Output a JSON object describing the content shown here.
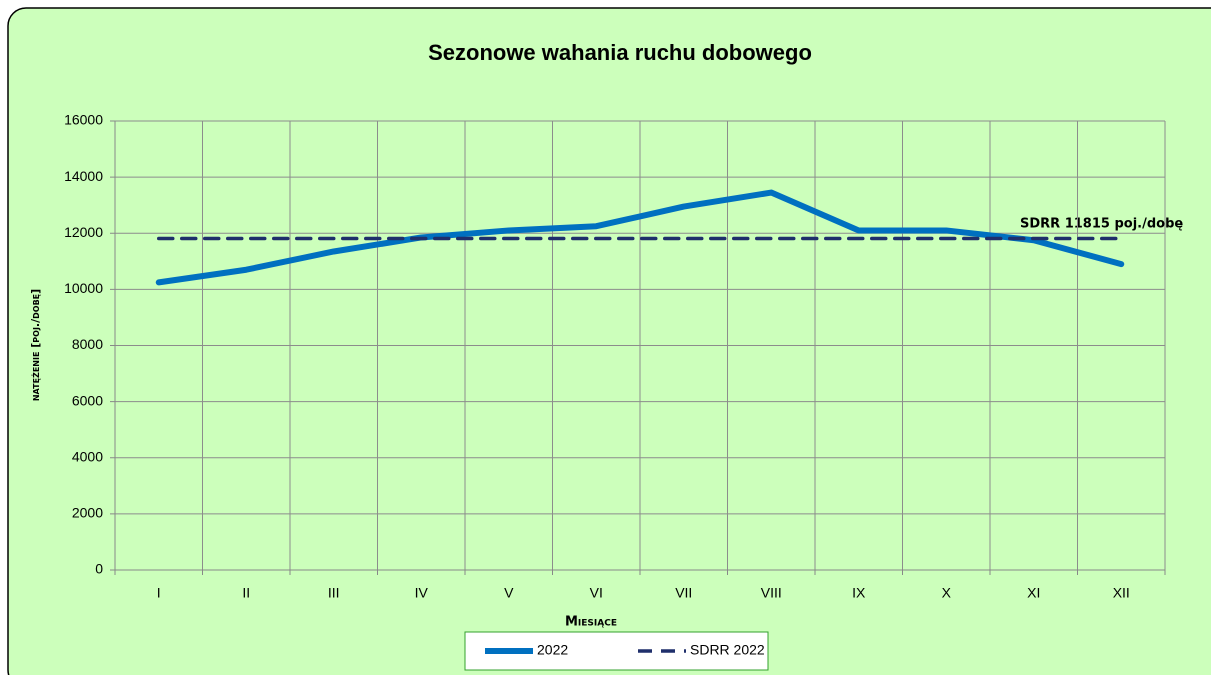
{
  "chart_data": {
    "type": "line",
    "title": "Sezonowe wahania ruchu dobowego",
    "x_label": "Miesiące",
    "y_label": "natężenie [poj./dobę]",
    "annotation": "SDRR 11815  poj./dobę",
    "categories": [
      "I",
      "II",
      "III",
      "IV",
      "V",
      "VI",
      "VII",
      "VIII",
      "IX",
      "X",
      "XI",
      "XII"
    ],
    "series": [
      {
        "name": "2022",
        "color": "#0070c0",
        "style": "solid",
        "values": [
          10250,
          10700,
          11350,
          11850,
          12100,
          12250,
          12950,
          13450,
          12100,
          12100,
          11750,
          10900
        ]
      },
      {
        "name": "SDRR 2022",
        "color": "#1f2f6b",
        "style": "dashed",
        "values": [
          11815,
          11815,
          11815,
          11815,
          11815,
          11815,
          11815,
          11815,
          11815,
          11815,
          11815,
          11815
        ]
      }
    ],
    "ylim": [
      0,
      16000
    ],
    "yticks": [
      0,
      2000,
      4000,
      6000,
      8000,
      10000,
      12000,
      14000,
      16000
    ],
    "grid": true,
    "legend": "bottom"
  }
}
